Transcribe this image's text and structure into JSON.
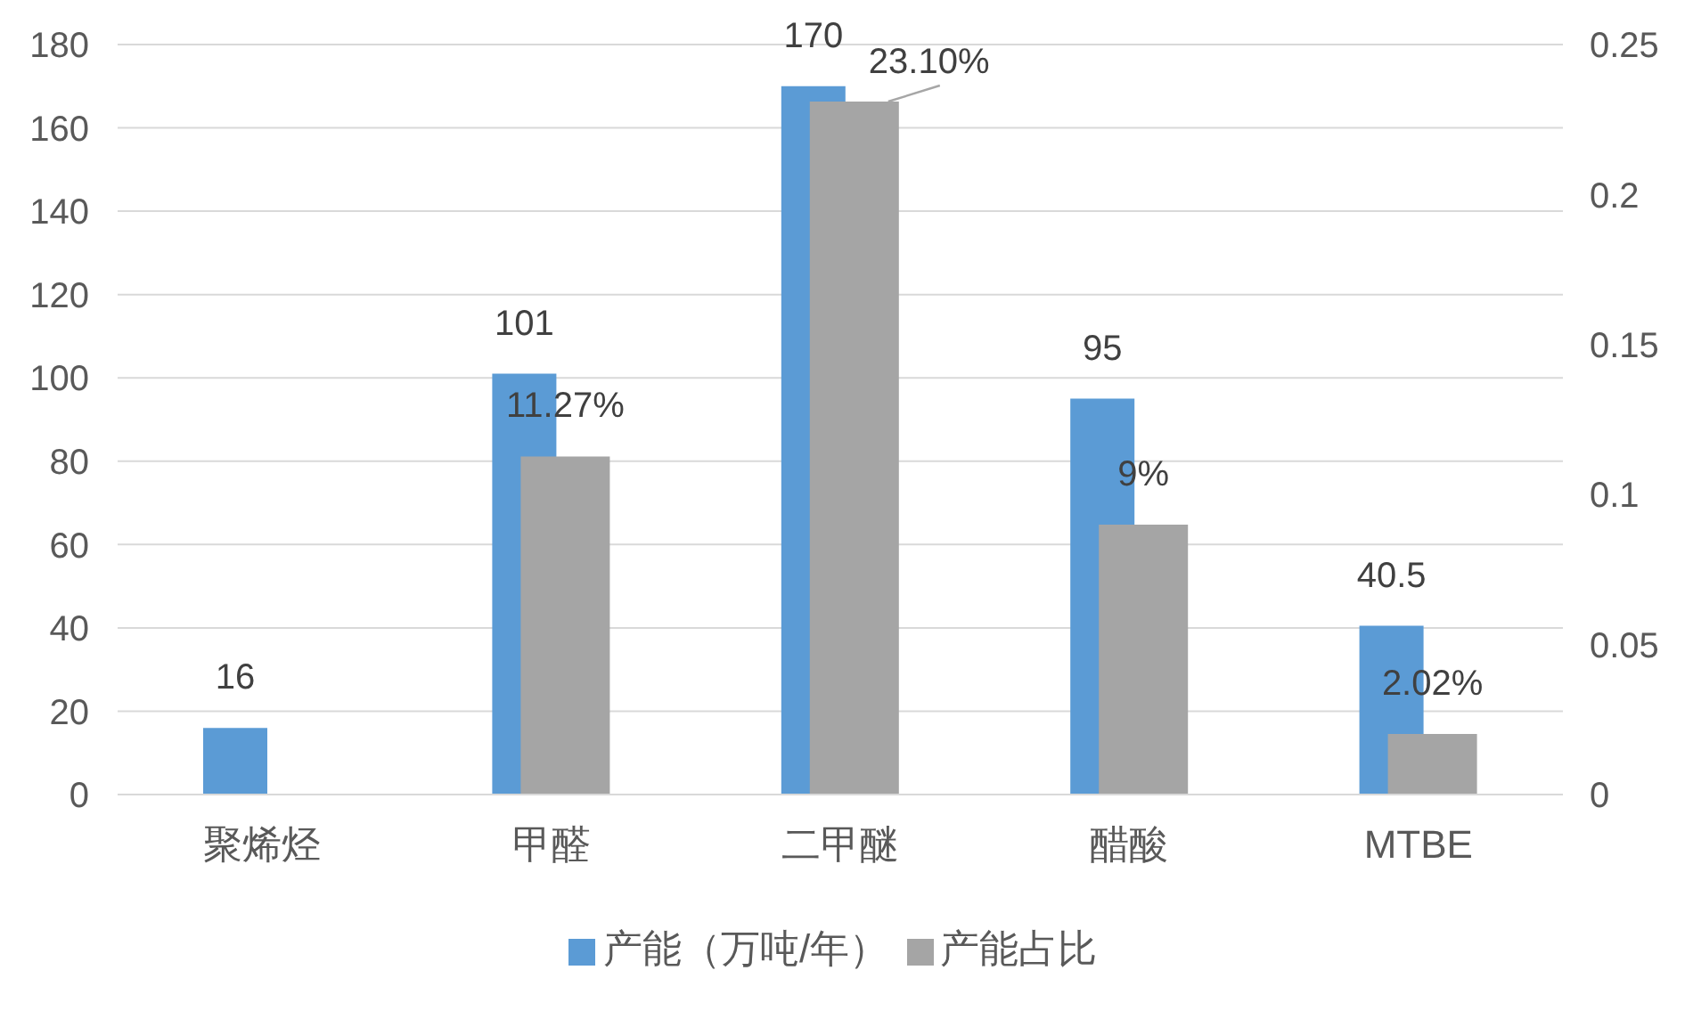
{
  "chart_data": {
    "type": "bar",
    "categories": [
      "聚烯烃",
      "甲醛",
      "二甲醚",
      "醋酸",
      "MTBE"
    ],
    "series": [
      {
        "name": "产能（万吨/年）",
        "color": "#5b9bd5",
        "values": [
          16,
          101,
          170,
          95,
          40.5
        ],
        "value_labels": [
          "16",
          "101",
          "170",
          "95",
          "40.5"
        ]
      },
      {
        "name": "产能占比",
        "color": "#a5a5a5",
        "axis": "y2",
        "values": [
          null,
          0.1127,
          0.231,
          0.09,
          0.0202
        ],
        "value_labels": [
          null,
          "11.27%",
          "23.10%",
          "9%",
          "2.02%"
        ]
      }
    ],
    "ylim": [
      0,
      180
    ],
    "yticks": [
      0,
      20,
      40,
      60,
      80,
      100,
      120,
      140,
      160,
      180
    ],
    "y2lim": [
      0,
      0.25
    ],
    "y2ticks": [
      0,
      0.05,
      0.1,
      0.15,
      0.2,
      0.25
    ],
    "grid": "y",
    "legend": "bottom"
  }
}
